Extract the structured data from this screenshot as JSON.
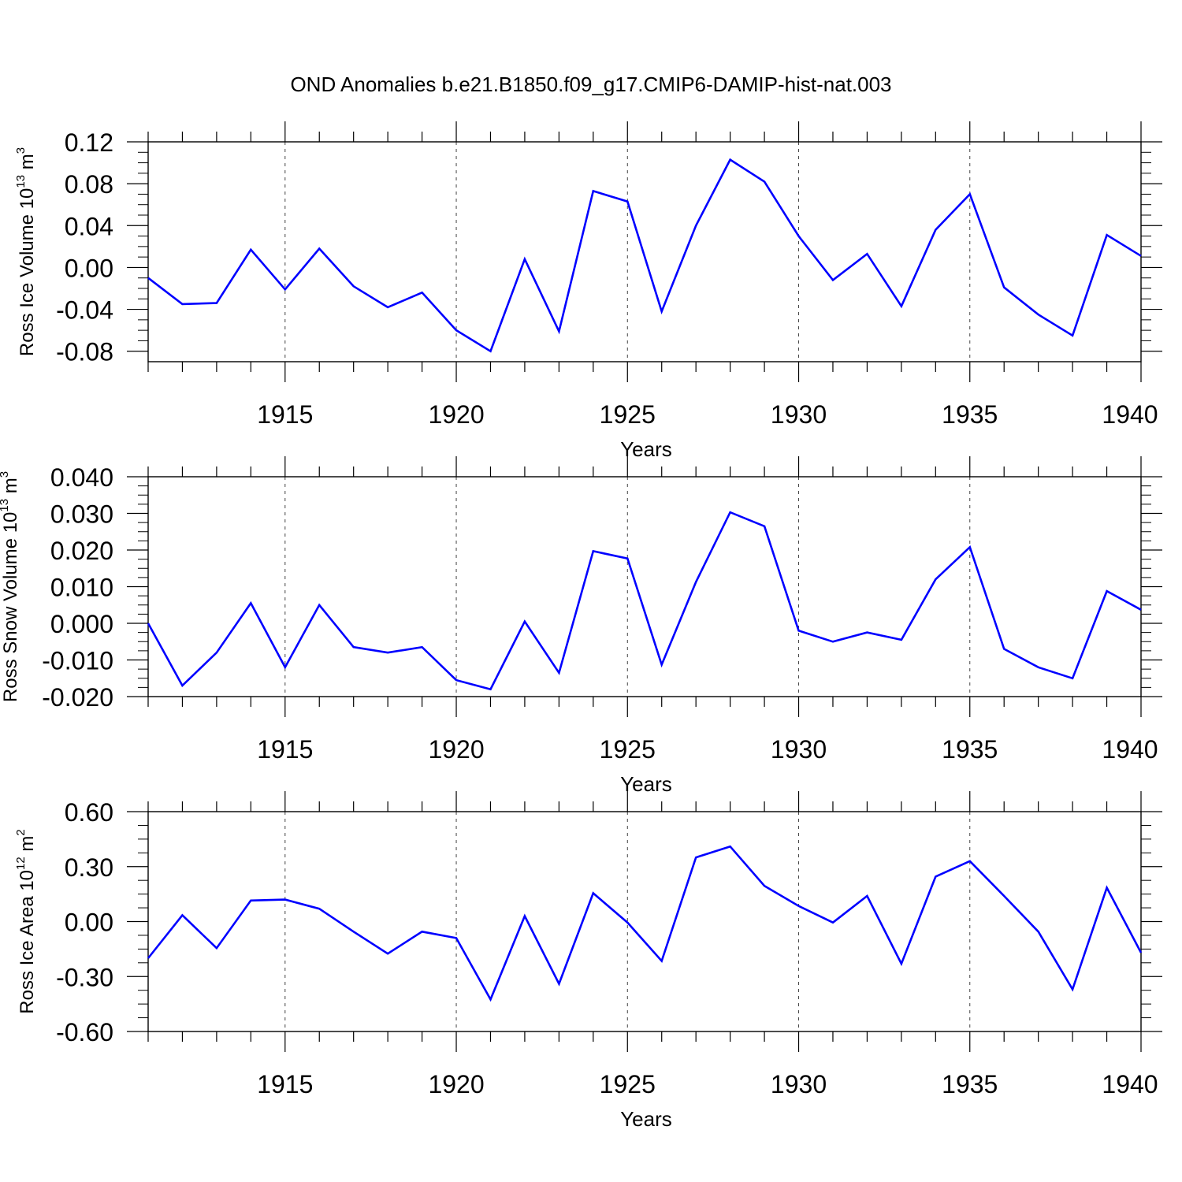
{
  "title": "OND Anomalies b.e21.B1850.f09_g17.CMIP6-DAMIP-hist-nat.003",
  "chart_data": [
    {
      "type": "line",
      "xlabel": "Years",
      "ylabel": {
        "main": "Ross Ice Volume 10",
        "exp": "13",
        "unit": " m",
        "unit_exp": "3"
      },
      "xlim": [
        1911,
        1940
      ],
      "ylim": [
        -0.09,
        0.12
      ],
      "xticks": [
        1915,
        1920,
        1925,
        1930,
        1935,
        1940
      ],
      "xtick_labels": [
        "1915",
        "1920",
        "1925",
        "1930",
        "1935",
        "1940"
      ],
      "yticks": [
        -0.08,
        -0.04,
        0.0,
        0.04,
        0.08,
        0.12
      ],
      "ytick_labels": [
        "-0.08",
        "-0.04",
        "0.00",
        "0.04",
        "0.08",
        "0.12"
      ],
      "x": [
        1911,
        1912,
        1913,
        1914,
        1915,
        1916,
        1917,
        1918,
        1919,
        1920,
        1921,
        1922,
        1923,
        1924,
        1925,
        1926,
        1927,
        1928,
        1929,
        1930,
        1931,
        1932,
        1933,
        1934,
        1935,
        1936,
        1937,
        1938,
        1939,
        1940
      ],
      "values": [
        -0.01,
        -0.035,
        -0.034,
        0.017,
        -0.021,
        0.018,
        -0.018,
        -0.038,
        -0.024,
        -0.06,
        -0.08,
        0.008,
        -0.061,
        0.073,
        0.063,
        -0.042,
        0.04,
        0.103,
        0.082,
        0.03,
        -0.012,
        0.013,
        -0.037,
        0.036,
        0.07,
        -0.019,
        -0.045,
        -0.065,
        0.031,
        0.011
      ],
      "color": "#0000ff",
      "grid": "vertical dashed at major x ticks"
    },
    {
      "type": "line",
      "xlabel": "Years",
      "ylabel": {
        "main": "Ross Snow Volume 10",
        "exp": "13",
        "unit": " m",
        "unit_exp": "3"
      },
      "xlim": [
        1911,
        1940
      ],
      "ylim": [
        -0.02,
        0.04
      ],
      "xticks": [
        1915,
        1920,
        1925,
        1930,
        1935,
        1940
      ],
      "xtick_labels": [
        "1915",
        "1920",
        "1925",
        "1930",
        "1935",
        "1940"
      ],
      "yticks": [
        -0.02,
        -0.01,
        0.0,
        0.01,
        0.02,
        0.03,
        0.04
      ],
      "ytick_labels": [
        "-0.020",
        "-0.010",
        "0.000",
        "0.010",
        "0.020",
        "0.030",
        "0.040"
      ],
      "x": [
        1911,
        1912,
        1913,
        1914,
        1915,
        1916,
        1917,
        1918,
        1919,
        1920,
        1921,
        1922,
        1923,
        1924,
        1925,
        1926,
        1927,
        1928,
        1929,
        1930,
        1931,
        1932,
        1933,
        1934,
        1935,
        1936,
        1937,
        1938,
        1939,
        1940
      ],
      "values": [
        0.0,
        -0.017,
        -0.008,
        0.0055,
        -0.012,
        0.005,
        -0.0065,
        -0.008,
        -0.0065,
        -0.0155,
        -0.018,
        0.0005,
        -0.0135,
        0.0197,
        0.0177,
        -0.0113,
        0.0113,
        0.0303,
        0.0265,
        -0.002,
        -0.005,
        -0.0025,
        -0.0045,
        0.012,
        0.0208,
        -0.007,
        -0.012,
        -0.015,
        0.0088,
        0.0037
      ],
      "color": "#0000ff",
      "grid": "vertical dashed at major x ticks"
    },
    {
      "type": "line",
      "xlabel": "Years",
      "ylabel": {
        "main": "Ross Ice Area 10",
        "exp": "12",
        "unit": " m",
        "unit_exp": "2"
      },
      "xlim": [
        1911,
        1940
      ],
      "ylim": [
        -0.6,
        0.6
      ],
      "xticks": [
        1915,
        1920,
        1925,
        1930,
        1935,
        1940
      ],
      "xtick_labels": [
        "1915",
        "1920",
        "1925",
        "1930",
        "1935",
        "1940"
      ],
      "yticks": [
        -0.6,
        -0.3,
        0.0,
        0.3,
        0.6
      ],
      "ytick_labels": [
        "-0.60",
        "-0.30",
        "0.00",
        "0.30",
        "0.60"
      ],
      "x": [
        1911,
        1912,
        1913,
        1914,
        1915,
        1916,
        1917,
        1918,
        1919,
        1920,
        1921,
        1922,
        1923,
        1924,
        1925,
        1926,
        1927,
        1928,
        1929,
        1930,
        1931,
        1932,
        1933,
        1934,
        1935,
        1936,
        1937,
        1938,
        1939,
        1940
      ],
      "values": [
        -0.2,
        0.035,
        -0.145,
        0.115,
        0.12,
        0.07,
        -0.055,
        -0.175,
        -0.055,
        -0.09,
        -0.425,
        0.03,
        -0.34,
        0.155,
        -0.005,
        -0.215,
        0.35,
        0.41,
        0.195,
        0.085,
        -0.005,
        0.14,
        -0.23,
        0.245,
        0.33,
        0.14,
        -0.055,
        -0.37,
        0.185,
        -0.17
      ],
      "color": "#0000ff",
      "grid": "vertical dashed at major x ticks"
    }
  ]
}
